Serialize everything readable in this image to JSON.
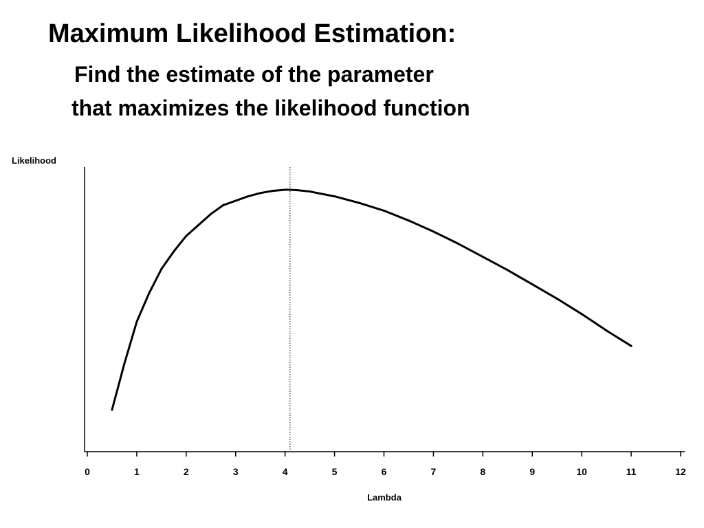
{
  "slide": {
    "title": "Maximum Likelihood Estimation:",
    "subtitle_line1": "Find the estimate of the parameter",
    "subtitle_line2": "that maximizes the likelihood function"
  },
  "chart_data": {
    "type": "line",
    "xlabel": "Lambda",
    "ylabel": "Likelihood",
    "xlim": [
      0,
      12
    ],
    "x_ticks": [
      0,
      1,
      2,
      3,
      4,
      5,
      6,
      7,
      8,
      9,
      10,
      11,
      12
    ],
    "y_ticks": [],
    "grid": false,
    "line_color": "#000000",
    "series": [
      {
        "x": [
          0.5,
          0.75,
          1.0,
          1.25,
          1.5,
          1.75,
          2.0,
          2.25,
          2.5,
          2.75,
          3.0,
          3.25,
          3.5,
          3.75,
          4.0,
          4.1,
          4.25,
          4.5,
          5.0,
          5.5,
          6.0,
          6.5,
          7.0,
          7.5,
          8.0,
          8.5,
          9.0,
          9.5,
          10.0,
          10.5,
          11.0
        ],
        "y": [
          0.0,
          0.21,
          0.4,
          0.53,
          0.64,
          0.72,
          0.79,
          0.84,
          0.89,
          0.93,
          0.95,
          0.97,
          0.985,
          0.995,
          1.0,
          1.0,
          0.998,
          0.992,
          0.97,
          0.94,
          0.905,
          0.86,
          0.81,
          0.755,
          0.695,
          0.635,
          0.57,
          0.505,
          0.435,
          0.36,
          0.29
        ]
      }
    ],
    "reference_line": {
      "x": 4.1,
      "style": "dotted"
    }
  }
}
